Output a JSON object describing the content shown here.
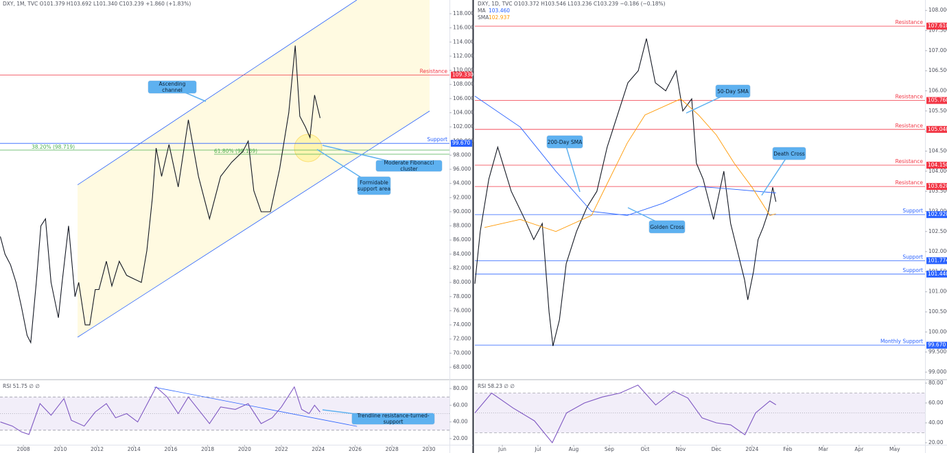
{
  "chart_data": [
    {
      "type": "line",
      "header": "DXY, 1M, TVC O101.379 H103.692 L101.340 C103.239 +1.860 (+1.83%)",
      "xlim": [
        2006.73,
        2031.12
      ],
      "ylim": [
        66.35,
        119.94
      ],
      "yticks": [
        {
          "value": 68,
          "label": "68.000"
        },
        {
          "value": 70,
          "label": "70.000"
        },
        {
          "value": 72,
          "label": "72.000"
        },
        {
          "value": 74,
          "label": "74.000"
        },
        {
          "value": 76,
          "label": "76.000"
        },
        {
          "value": 78,
          "label": "78.000"
        },
        {
          "value": 80,
          "label": "80.000"
        },
        {
          "value": 82,
          "label": "82.000"
        },
        {
          "value": 84,
          "label": "84.000"
        },
        {
          "value": 86,
          "label": "86.000"
        },
        {
          "value": 88,
          "label": "88.000"
        },
        {
          "value": 90,
          "label": "90.000"
        },
        {
          "value": 92,
          "label": "92.000"
        },
        {
          "value": 94,
          "label": "94.000"
        },
        {
          "value": 96,
          "label": "96.000"
        },
        {
          "value": 98,
          "label": "98.000"
        },
        {
          "value": 100,
          "label": "100.000"
        },
        {
          "value": 102,
          "label": "102.000"
        },
        {
          "value": 104,
          "label": "104.000"
        },
        {
          "value": 106,
          "label": "106.000"
        },
        {
          "value": 108,
          "label": "108.000"
        },
        {
          "value": 110,
          "label": "110.000"
        },
        {
          "value": 112,
          "label": "112.000"
        },
        {
          "value": 114,
          "label": "114.000"
        },
        {
          "value": 116,
          "label": "116.000"
        },
        {
          "value": 118,
          "label": "118.000"
        }
      ],
      "series": [
        {
          "color": "#131722",
          "x": [
            2006.75,
            2007.0,
            2007.3,
            2007.6,
            2007.9,
            2008.2,
            2008.4,
            2008.7,
            2008.95,
            2009.2,
            2009.5,
            2009.9,
            2010.1,
            2010.45,
            2010.8,
            2011.0,
            2011.35,
            2011.6,
            2011.9,
            2012.1,
            2012.5,
            2012.8,
            2013.2,
            2013.6,
            2014.0,
            2014.4,
            2014.7,
            2015.0,
            2015.2,
            2015.5,
            2015.9,
            2016.4,
            2016.95,
            2017.5,
            2018.1,
            2018.7,
            2019.3,
            2019.9,
            2020.2,
            2020.5,
            2020.9,
            2021.4,
            2021.9,
            2022.4,
            2022.75,
            2023.0,
            2023.3,
            2023.55,
            2023.8,
            2024.1
          ],
          "values": [
            86.5,
            84,
            82.5,
            80,
            76.5,
            72.5,
            71.5,
            80,
            88,
            89,
            80,
            75,
            80,
            88,
            78,
            80,
            74,
            74,
            79,
            79,
            83,
            79.5,
            83,
            81,
            80.5,
            80,
            84.5,
            92,
            99,
            95,
            99.5,
            93.5,
            103,
            95,
            89,
            95,
            97,
            98.5,
            100,
            93,
            90,
            90,
            96,
            104,
            113.5,
            103.5,
            102,
            100.5,
            106.5,
            103.24
          ]
        }
      ],
      "levels": [
        {
          "name": "Resistance",
          "value": 109.33,
          "value_label": "109.330",
          "color": "#f23645"
        },
        {
          "name": "Support",
          "value": 99.67,
          "value_label": "99.670",
          "color": "#2962ff"
        }
      ],
      "fib_levels": [
        {
          "label": "38.20% (98.719)",
          "value": 98.719,
          "color": "#4caf50"
        },
        {
          "label": "61.80% (98.139)",
          "value": 98.139,
          "color": "#4caf50"
        }
      ],
      "channel": {
        "color": "#2962ff",
        "upper": {
          "x": [
            2010.94,
            2026.09
          ],
          "values": [
            93.8,
            119.94
          ]
        },
        "lower": {
          "x": [
            2010.94,
            2030.04
          ],
          "values": [
            72.26,
            104.24
          ]
        }
      },
      "annotations": [
        "Ascending channel",
        "Moderate Fibonacci cluster",
        "Formidable support area"
      ]
    },
    {
      "type": "line",
      "header": "RSI 51.75 ∅ ∅",
      "xlim": [
        2006.73,
        2031.12
      ],
      "ylim": [
        13.42,
        89.86
      ],
      "yticks": [
        {
          "value": 20,
          "label": "20.00"
        },
        {
          "value": 40,
          "label": "40.00"
        },
        {
          "value": 60,
          "label": "60.00"
        },
        {
          "value": 80,
          "label": "80.00"
        }
      ],
      "xticks": [
        2008,
        2010,
        2012,
        2014,
        2016,
        2018,
        2020,
        2022,
        2024,
        2026,
        2028,
        2030
      ],
      "bands": [
        70,
        50,
        30
      ],
      "series": [
        {
          "color": "#7e57c2",
          "x": [
            2006.75,
            2007.4,
            2007.9,
            2008.3,
            2008.9,
            2009.5,
            2010.2,
            2010.6,
            2011.3,
            2011.9,
            2012.5,
            2013.0,
            2013.6,
            2014.2,
            2014.8,
            2015.2,
            2015.8,
            2016.4,
            2016.95,
            2018.1,
            2018.7,
            2019.5,
            2020.2,
            2020.9,
            2021.5,
            2022.0,
            2022.7,
            2023.1,
            2023.5,
            2023.8,
            2024.1
          ],
          "values": [
            40,
            35,
            28,
            25,
            62,
            48,
            68,
            42,
            35,
            52,
            62,
            45,
            50,
            40,
            65,
            82,
            70,
            50,
            70,
            38,
            58,
            55,
            62,
            38,
            45,
            58,
            82,
            55,
            50,
            60,
            51.75
          ]
        }
      ],
      "trendline": {
        "color": "#2962ff",
        "x": [
          2015.1,
          2026.1
        ],
        "values": [
          81.6,
          34.7
        ]
      },
      "annotations": [
        "Trendline resistance-turned-support"
      ]
    },
    {
      "type": "line",
      "header": "DXY, 1D, TVC O103.372 H103.546 L103.236 C103.239 −0.186 (−0.18%)",
      "xlim": [
        -0.77,
        11.85
      ],
      "ylim": [
        98.83,
        108.26
      ],
      "yticks": [
        {
          "value": 99,
          "label": "99.000"
        },
        {
          "value": 99.5,
          "label": "99.500"
        },
        {
          "value": 100,
          "label": "100.000"
        },
        {
          "value": 100.5,
          "label": "100.500"
        },
        {
          "value": 101,
          "label": "101.000"
        },
        {
          "value": 101.5,
          "label": "101.500"
        },
        {
          "value": 102,
          "label": "102.000"
        },
        {
          "value": 102.5,
          "label": "102.500"
        },
        {
          "value": 103,
          "label": "103.000"
        },
        {
          "value": 103.5,
          "label": "103.500"
        },
        {
          "value": 104,
          "label": "104.000"
        },
        {
          "value": 104.5,
          "label": "104.500"
        },
        {
          "value": 105,
          "label": "105.000"
        },
        {
          "value": 105.5,
          "label": "105.500"
        },
        {
          "value": 106,
          "label": "106.000"
        },
        {
          "value": 106.5,
          "label": "106.500"
        },
        {
          "value": 107,
          "label": "107.000"
        },
        {
          "value": 107.5,
          "label": "107.500"
        },
        {
          "value": 108,
          "label": "108.000"
        }
      ],
      "series": [
        {
          "color": "#131722",
          "x": [
            -0.77,
            -0.62,
            -0.38,
            -0.13,
            0.25,
            0.63,
            0.88,
            1.12,
            1.31,
            1.42,
            1.6,
            1.79,
            2.08,
            2.37,
            2.65,
            2.94,
            3.23,
            3.52,
            3.81,
            4.04,
            4.29,
            4.58,
            4.87,
            5.06,
            5.31,
            5.44,
            5.63,
            5.92,
            6.21,
            6.4,
            6.65,
            6.79,
            6.88,
            7.04,
            7.17,
            7.31,
            7.46,
            7.58,
            7.67
          ],
          "values": [
            101.2,
            102.5,
            103.8,
            104.6,
            103.5,
            102.8,
            102.3,
            102.7,
            100.5,
            99.65,
            100.3,
            101.7,
            102.5,
            103.1,
            103.5,
            104.6,
            105.4,
            106.2,
            106.5,
            107.3,
            106.2,
            106.0,
            106.5,
            105.5,
            105.8,
            104.2,
            103.8,
            102.8,
            104.0,
            102.7,
            101.8,
            101.3,
            100.8,
            101.5,
            102.3,
            102.6,
            103.0,
            103.6,
            103.24
          ]
        },
        {
          "name": "MA",
          "last_label": "103.460",
          "color": "#2962ff",
          "x": [
            -0.77,
            0.5,
            1.5,
            2.5,
            3.5,
            4.5,
            5.5,
            6.5,
            7.67
          ],
          "values": [
            105.87,
            105.1,
            104.0,
            103.0,
            102.9,
            103.2,
            103.62,
            103.55,
            103.46
          ]
        },
        {
          "name": "SMA",
          "last_label": "102.937",
          "color": "#ff9800",
          "x": [
            -0.5,
            0.5,
            1.5,
            2.5,
            3.0,
            3.5,
            4.0,
            5.0,
            5.5,
            6.0,
            6.5,
            7.0,
            7.5,
            7.67
          ],
          "values": [
            102.6,
            102.8,
            102.5,
            102.9,
            103.8,
            104.7,
            105.4,
            105.8,
            105.4,
            104.9,
            104.2,
            103.6,
            102.9,
            102.94
          ]
        }
      ],
      "levels": [
        {
          "name": "Resistance",
          "value": 107.61,
          "value_label": "107.610",
          "color": "#f23645"
        },
        {
          "name": "Resistance",
          "value": 105.76,
          "value_label": "105.760",
          "color": "#f23645"
        },
        {
          "name": "Resistance",
          "value": 105.04,
          "value_label": "105.040",
          "color": "#f23645"
        },
        {
          "name": "Resistance",
          "value": 104.15,
          "value_label": "104.150",
          "color": "#f23645"
        },
        {
          "name": "Resistance",
          "value": 103.62,
          "value_label": "103.620",
          "color": "#f23645"
        },
        {
          "name": "Support",
          "value": 102.92,
          "value_label": "102.920",
          "color": "#2962ff"
        },
        {
          "name": "Support",
          "value": 101.774,
          "value_label": "101.774",
          "color": "#2962ff"
        },
        {
          "name": "Support",
          "value": 101.44,
          "value_label": "101.440",
          "color": "#2962ff"
        },
        {
          "name": "Monthly Support",
          "value": 99.67,
          "value_label": "99.670",
          "color": "#2962ff"
        }
      ],
      "annotations": [
        "200-Day SMA",
        "50-Day SMA",
        "Golden Cross",
        "Death Cross"
      ]
    },
    {
      "type": "line",
      "header": "RSI 58.23 ∅ ∅",
      "xlim": [
        -0.77,
        11.85
      ],
      "ylim": [
        18.62,
        82.76
      ],
      "yticks": [
        {
          "value": 20,
          "label": "20.00"
        },
        {
          "value": 40,
          "label": "40.00"
        },
        {
          "value": 60,
          "label": "60.00"
        },
        {
          "value": 80,
          "label": "80.00"
        }
      ],
      "xticks": [
        {
          "value": 0,
          "label": "Jun"
        },
        {
          "value": 1,
          "label": "Jul"
        },
        {
          "value": 2,
          "label": "Aug"
        },
        {
          "value": 3,
          "label": "Sep"
        },
        {
          "value": 4,
          "label": "Oct"
        },
        {
          "value": 5,
          "label": "Nov"
        },
        {
          "value": 6,
          "label": "Dec"
        },
        {
          "value": 7,
          "label": "2024"
        },
        {
          "value": 8,
          "label": "Feb"
        },
        {
          "value": 9,
          "label": "Mar"
        },
        {
          "value": 10,
          "label": "Apr"
        },
        {
          "value": 11,
          "label": "May"
        }
      ],
      "bands": [
        70,
        50,
        30
      ],
      "series": [
        {
          "color": "#7e57c2",
          "x": [
            -0.77,
            -0.3,
            0.3,
            0.9,
            1.4,
            1.8,
            2.3,
            2.8,
            3.3,
            3.8,
            4.3,
            4.8,
            5.2,
            5.6,
            6.0,
            6.4,
            6.8,
            7.1,
            7.5,
            7.67
          ],
          "values": [
            50,
            70,
            55,
            42,
            20,
            50,
            60,
            66,
            70,
            78,
            58,
            72,
            65,
            45,
            40,
            38,
            28,
            50,
            62,
            58.23
          ]
        }
      ]
    }
  ]
}
